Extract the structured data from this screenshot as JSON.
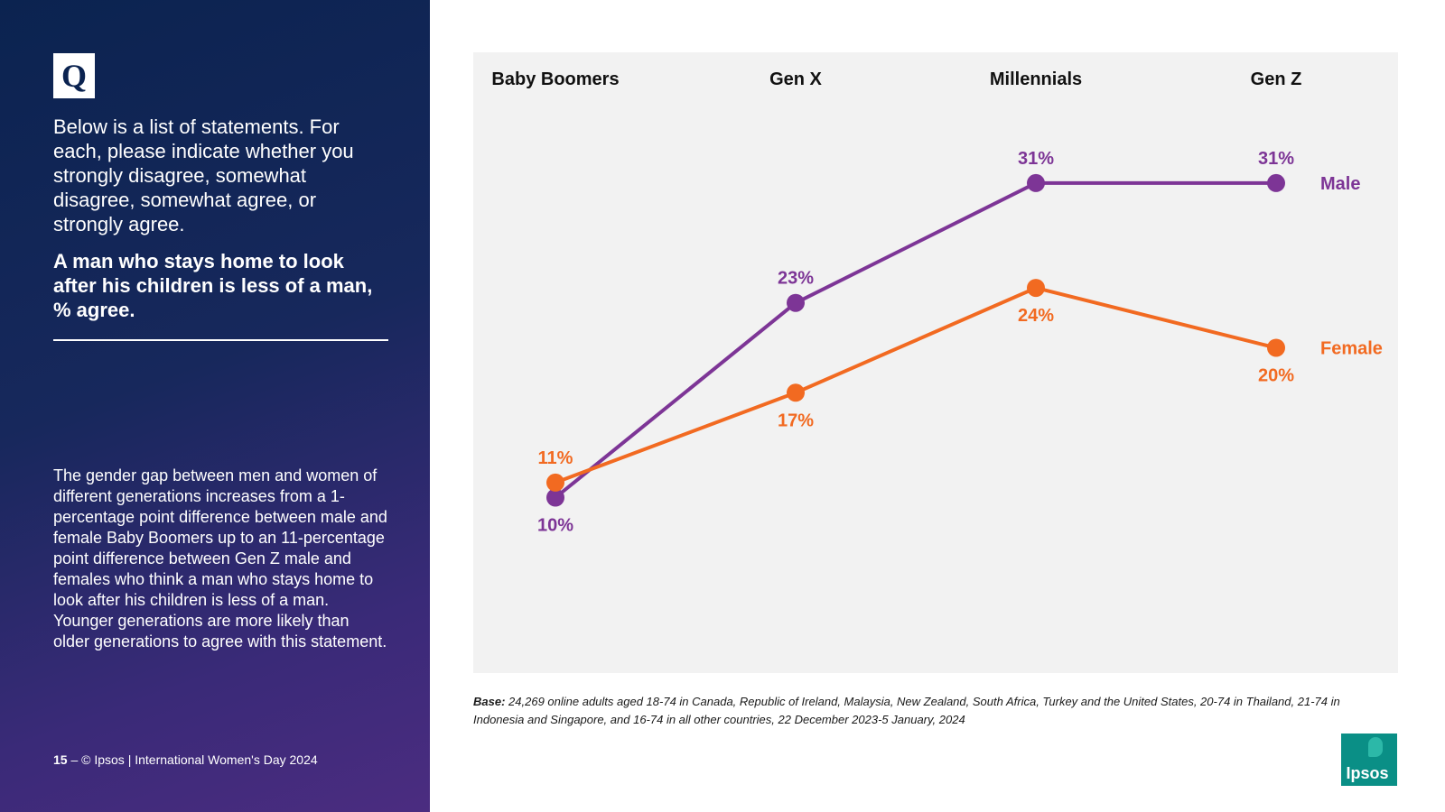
{
  "question_badge": "Q",
  "question_text": "Below is a list of statements. For each, please indicate whether you strongly disagree, somewhat disagree, somewhat agree, or strongly agree.",
  "statement_text": "A man who stays home to look after his children is less of a man, % agree.",
  "insight_text": "The gender gap between men and women of different generations increases from a 1-percentage point difference between male and female Baby Boomers up to an 11-percentage point difference between Gen Z male and females who think a man who stays home to look after his children is less of a man. Younger generations are more likely than older generations to agree with this statement.",
  "footer": {
    "page_number": "15",
    "text": " – © Ipsos | International Women's Day 2024"
  },
  "base_note": {
    "label": "Base:",
    "text": " 24,269 online adults aged 18-74 in Canada, Republic of Ireland, Malaysia, New Zealand, South Africa, Turkey and the United States, 20-74 in Thailand, 21-74 in Indonesia and Singapore, and 16-74 in all other countries, 22 December 2023-5 January, 2024"
  },
  "logo_text": "Ipsos",
  "colors": {
    "male": "#7d3596",
    "female": "#f26a21"
  },
  "chart_data": {
    "type": "line",
    "title": "",
    "categories": [
      "Baby Boomers",
      "Gen X",
      "Millennials",
      "Gen Z"
    ],
    "series": [
      {
        "name": "Male",
        "values": [
          10,
          23,
          31,
          31
        ],
        "labels": [
          "10%",
          "23%",
          "31%",
          "31%"
        ]
      },
      {
        "name": "Female",
        "values": [
          11,
          17,
          24,
          20
        ],
        "labels": [
          "11%",
          "17%",
          "24%",
          "20%"
        ]
      }
    ],
    "ylim": [
      0,
      40
    ],
    "grid": false,
    "legend": "inline-right"
  }
}
